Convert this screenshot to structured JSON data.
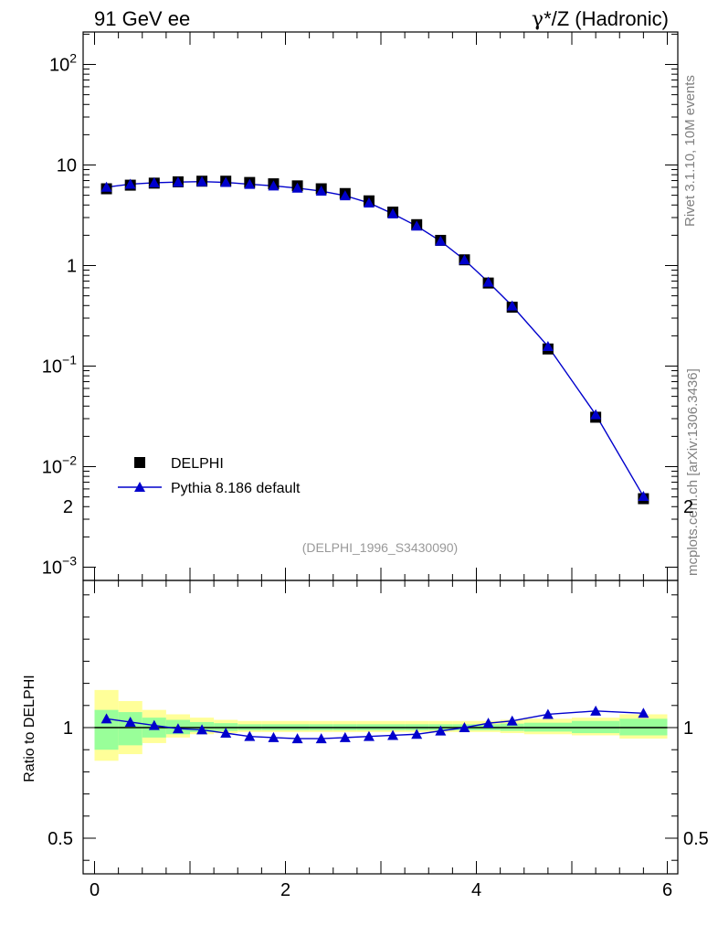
{
  "header": {
    "left_title": "91 GeV ee",
    "right_title_greek": "γ",
    "right_title_rest": "*/Z (Hadronic)"
  },
  "side_text": {
    "rivet": "Rivet 3.1.10,  10M events",
    "mcplots": "mcplots.cern.ch [arXiv:1306.3436]"
  },
  "watermark": "(DELPHI_1996_S3430090)",
  "legend": {
    "data_label": "DELPHI",
    "mc_label": "Pythia 8.186 default"
  },
  "ratio_ylabel": "Ratio to DELPHI",
  "colors": {
    "data": "#000000",
    "mc": "#0000cc",
    "band_inner": "#99ff99",
    "band_outer": "#ffff99",
    "side_text": "#808080"
  },
  "chart_data": [
    {
      "type": "scatter",
      "panel": "main",
      "y_scale": "log",
      "xlim": [
        -0.1,
        6.1
      ],
      "ylim": [
        0.0008,
        200
      ],
      "y_tick_labels": [
        "10^-3",
        "10^-2",
        "10^-1",
        "1",
        "10",
        "10^2"
      ],
      "series": [
        {
          "name": "DELPHI",
          "marker": "square",
          "x": [
            0.125,
            0.375,
            0.625,
            0.875,
            1.125,
            1.375,
            1.625,
            1.875,
            2.125,
            2.375,
            2.625,
            2.875,
            3.125,
            3.375,
            3.625,
            3.875,
            4.125,
            4.375,
            4.75,
            5.25,
            5.75
          ],
          "values": [
            5.8,
            6.3,
            6.6,
            6.8,
            6.9,
            6.9,
            6.7,
            6.5,
            6.2,
            5.8,
            5.2,
            4.4,
            3.4,
            2.55,
            1.78,
            1.14,
            0.67,
            0.385,
            0.148,
            0.031,
            0.0048
          ]
        },
        {
          "name": "Pythia 8.186 default",
          "marker": "triangle",
          "x": [
            0.125,
            0.375,
            0.625,
            0.875,
            1.125,
            1.375,
            1.625,
            1.875,
            2.125,
            2.375,
            2.625,
            2.875,
            3.125,
            3.375,
            3.625,
            3.875,
            4.125,
            4.375,
            4.75,
            5.25,
            5.75
          ],
          "values": [
            6.02,
            6.45,
            6.66,
            6.76,
            6.83,
            6.71,
            6.43,
            6.2,
            5.89,
            5.5,
            4.95,
            4.2,
            3.27,
            2.47,
            1.75,
            1.14,
            0.684,
            0.397,
            0.157,
            0.0329,
            0.00506
          ]
        }
      ]
    },
    {
      "type": "line",
      "panel": "ratio",
      "xlim": [
        -0.1,
        6.1
      ],
      "ylim": [
        0.35,
        2.3
      ],
      "ylabel": "Ratio to DELPHI",
      "x_tick_labels": [
        "0",
        "2",
        "4",
        "6"
      ],
      "y_tick_labels": [
        "0.5",
        "1",
        "2"
      ],
      "bins": [
        [
          0.0,
          0.25
        ],
        [
          0.25,
          0.5
        ],
        [
          0.5,
          0.75
        ],
        [
          0.75,
          1.0
        ],
        [
          1.0,
          1.25
        ],
        [
          1.25,
          1.5
        ],
        [
          1.5,
          1.75
        ],
        [
          1.75,
          2.0
        ],
        [
          2.0,
          2.25
        ],
        [
          2.25,
          2.5
        ],
        [
          2.5,
          2.75
        ],
        [
          2.75,
          3.0
        ],
        [
          3.0,
          3.25
        ],
        [
          3.25,
          3.5
        ],
        [
          3.5,
          3.75
        ],
        [
          3.75,
          4.0
        ],
        [
          4.0,
          4.25
        ],
        [
          4.25,
          4.5
        ],
        [
          4.5,
          5.0
        ],
        [
          5.0,
          5.5
        ],
        [
          5.5,
          6.0
        ]
      ],
      "band_outer": [
        [
          0.85,
          1.17
        ],
        [
          0.88,
          1.12
        ],
        [
          0.93,
          1.08
        ],
        [
          0.955,
          1.06
        ],
        [
          0.97,
          1.045
        ],
        [
          0.975,
          1.035
        ],
        [
          0.98,
          1.03
        ],
        [
          0.98,
          1.03
        ],
        [
          0.98,
          1.03
        ],
        [
          0.98,
          1.03
        ],
        [
          0.98,
          1.03
        ],
        [
          0.98,
          1.03
        ],
        [
          0.98,
          1.03
        ],
        [
          0.98,
          1.03
        ],
        [
          0.98,
          1.03
        ],
        [
          0.98,
          1.03
        ],
        [
          0.98,
          1.03
        ],
        [
          0.975,
          1.035
        ],
        [
          0.97,
          1.04
        ],
        [
          0.965,
          1.045
        ],
        [
          0.95,
          1.06
        ]
      ],
      "band_inner": [
        [
          0.9,
          1.08
        ],
        [
          0.92,
          1.07
        ],
        [
          0.955,
          1.045
        ],
        [
          0.97,
          1.035
        ],
        [
          0.98,
          1.025
        ],
        [
          0.985,
          1.02
        ],
        [
          0.988,
          1.015
        ],
        [
          0.988,
          1.015
        ],
        [
          0.988,
          1.015
        ],
        [
          0.988,
          1.015
        ],
        [
          0.988,
          1.015
        ],
        [
          0.988,
          1.015
        ],
        [
          0.988,
          1.015
        ],
        [
          0.988,
          1.015
        ],
        [
          0.988,
          1.015
        ],
        [
          0.988,
          1.015
        ],
        [
          0.988,
          1.015
        ],
        [
          0.985,
          1.018
        ],
        [
          0.982,
          1.022
        ],
        [
          0.975,
          1.03
        ],
        [
          0.965,
          1.04
        ]
      ],
      "series": [
        {
          "name": "Pythia 8.186 default",
          "x": [
            0.125,
            0.375,
            0.625,
            0.875,
            1.125,
            1.375,
            1.625,
            1.875,
            2.125,
            2.375,
            2.625,
            2.875,
            3.125,
            3.375,
            3.625,
            3.875,
            4.125,
            4.375,
            4.75,
            5.25,
            5.75
          ],
          "values": [
            1.04,
            1.025,
            1.01,
            0.995,
            0.99,
            0.975,
            0.96,
            0.955,
            0.95,
            0.95,
            0.955,
            0.96,
            0.965,
            0.97,
            0.985,
            1.0,
            1.02,
            1.03,
            1.06,
            1.075,
            1.065
          ]
        }
      ]
    }
  ]
}
